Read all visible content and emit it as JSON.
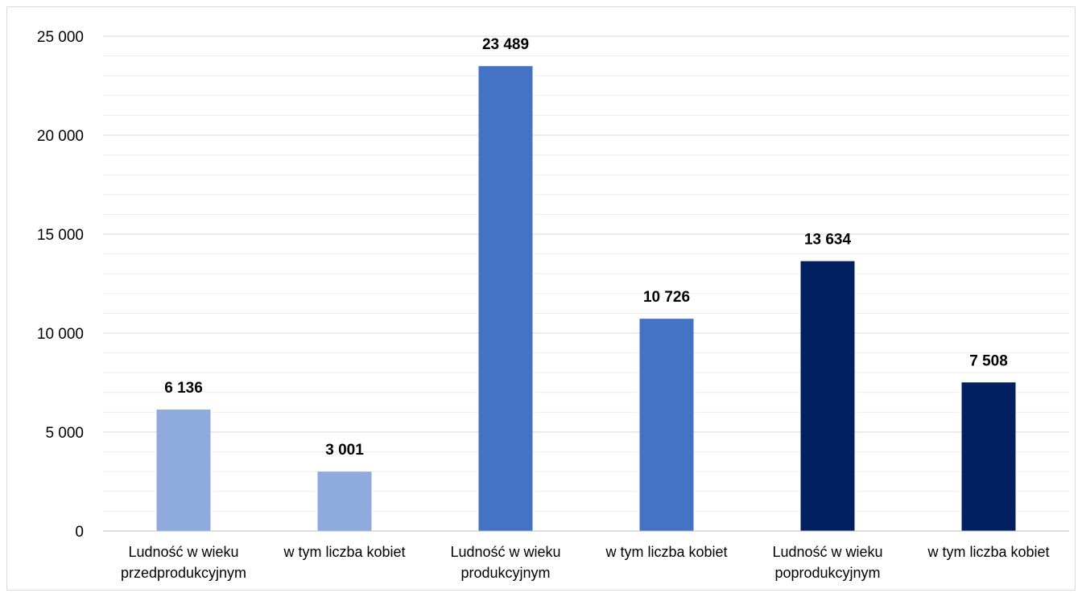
{
  "chart_data": {
    "type": "bar",
    "title": "",
    "xlabel": "",
    "ylabel": "",
    "ylim": [
      0,
      25000
    ],
    "major_ticks": [
      0,
      5000,
      10000,
      15000,
      20000,
      25000
    ],
    "tick_labels": [
      "0",
      "5 000",
      "10 000",
      "15 000",
      "20 000",
      "25 000"
    ],
    "minor_grid_step": 1000,
    "grid": true,
    "legend": "none",
    "categories": [
      [
        "Ludność w wieku",
        "przedprodukcyjnym"
      ],
      [
        "w tym liczba kobiet"
      ],
      [
        "Ludność w wieku",
        "produkcyjnym"
      ],
      [
        "w tym liczba kobiet"
      ],
      [
        "Ludność w wieku",
        "poprodukcyjnym"
      ],
      [
        "w tym liczba kobiet"
      ]
    ],
    "values": [
      6136,
      3001,
      23489,
      10726,
      13634,
      7508
    ],
    "value_labels": [
      "6 136",
      "3 001",
      "23 489",
      "10 726",
      "13 634",
      "7 508"
    ],
    "bar_colors": [
      "#8faadc",
      "#8faadc",
      "#4472c4",
      "#4472c4",
      "#002060",
      "#002060"
    ],
    "grid_color": "#d9d9d9",
    "minor_grid_color": "#ededed",
    "axis_color": "#bfbfbf"
  }
}
